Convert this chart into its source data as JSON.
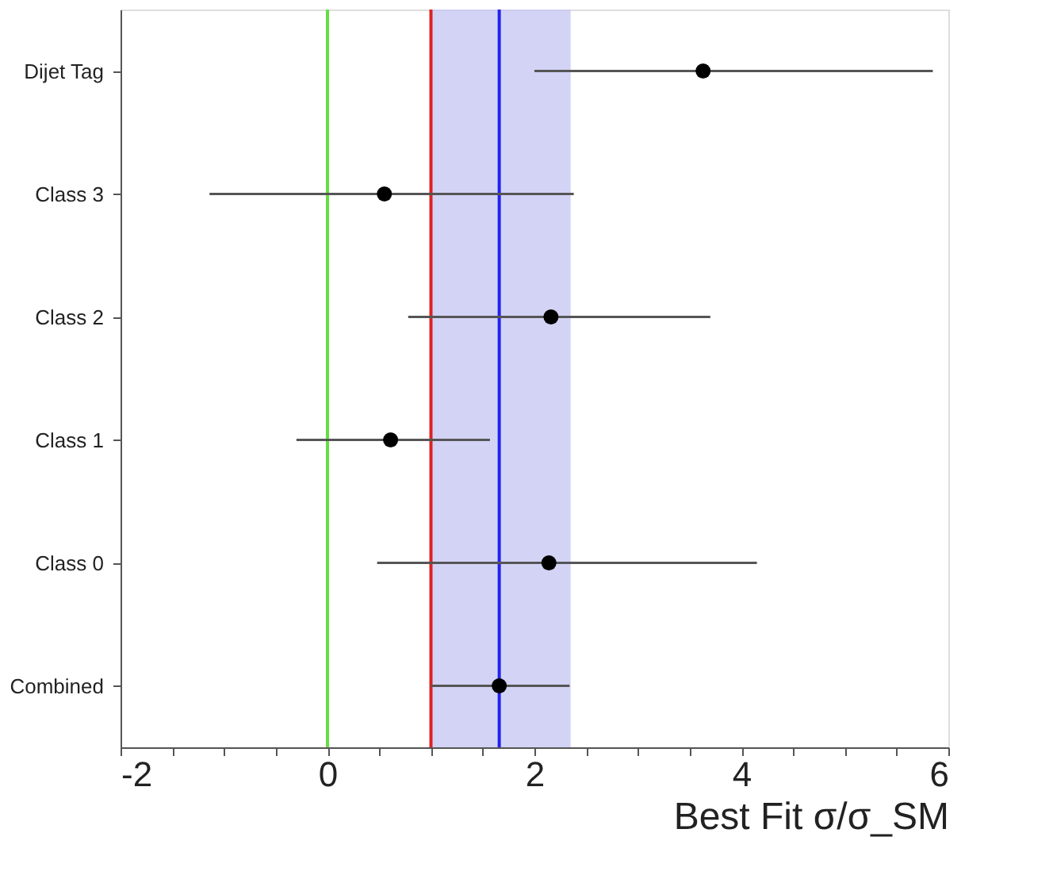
{
  "chart_data": {
    "type": "scatter",
    "orientation": "horizontal",
    "xlabel": "Best Fit σ/σ_SM",
    "categories": [
      "Dijet Tag",
      "Class 3",
      "Class 2",
      "Class 1",
      "Class 0",
      "Combined"
    ],
    "values": [
      3.63,
      0.55,
      2.16,
      0.61,
      2.14,
      1.66
    ],
    "errors": [
      [
        2.0,
        5.85
      ],
      [
        -1.14,
        2.38
      ],
      [
        0.78,
        3.7
      ],
      [
        -0.3,
        1.57
      ],
      [
        0.48,
        4.15
      ],
      [
        1.0,
        2.34
      ]
    ],
    "color": "#000000",
    "marker": "circle",
    "grid": false,
    "xlim": [
      -2,
      6
    ],
    "xticks": [
      -2,
      {
        "value": -1.5,
        "label": null
      },
      {
        "value": -1,
        "label": null
      },
      {
        "value": -0.5,
        "label": null
      },
      0,
      {
        "value": 0.5,
        "label": null
      },
      {
        "value": 1,
        "label": null
      },
      {
        "value": 1.5,
        "label": null
      },
      2,
      {
        "value": 2.5,
        "label": null
      },
      {
        "value": 3,
        "label": null
      },
      {
        "value": 3.5,
        "label": null
      },
      4,
      {
        "value": 4.5,
        "label": null
      },
      {
        "value": 5,
        "label": null
      },
      {
        "value": 5.5,
        "label": null
      },
      6
    ],
    "ref_lines": [
      {
        "axis": "x",
        "value": 0,
        "color": "#66dd44"
      },
      {
        "axis": "x",
        "value": 1,
        "color": "#dd2222"
      },
      {
        "axis": "x",
        "value": 1.66,
        "color": "#2222ee"
      }
    ],
    "bands": [
      {
        "axis": "x",
        "from": 1.0,
        "to": 2.35,
        "color": "#c8c8f4"
      }
    ]
  }
}
